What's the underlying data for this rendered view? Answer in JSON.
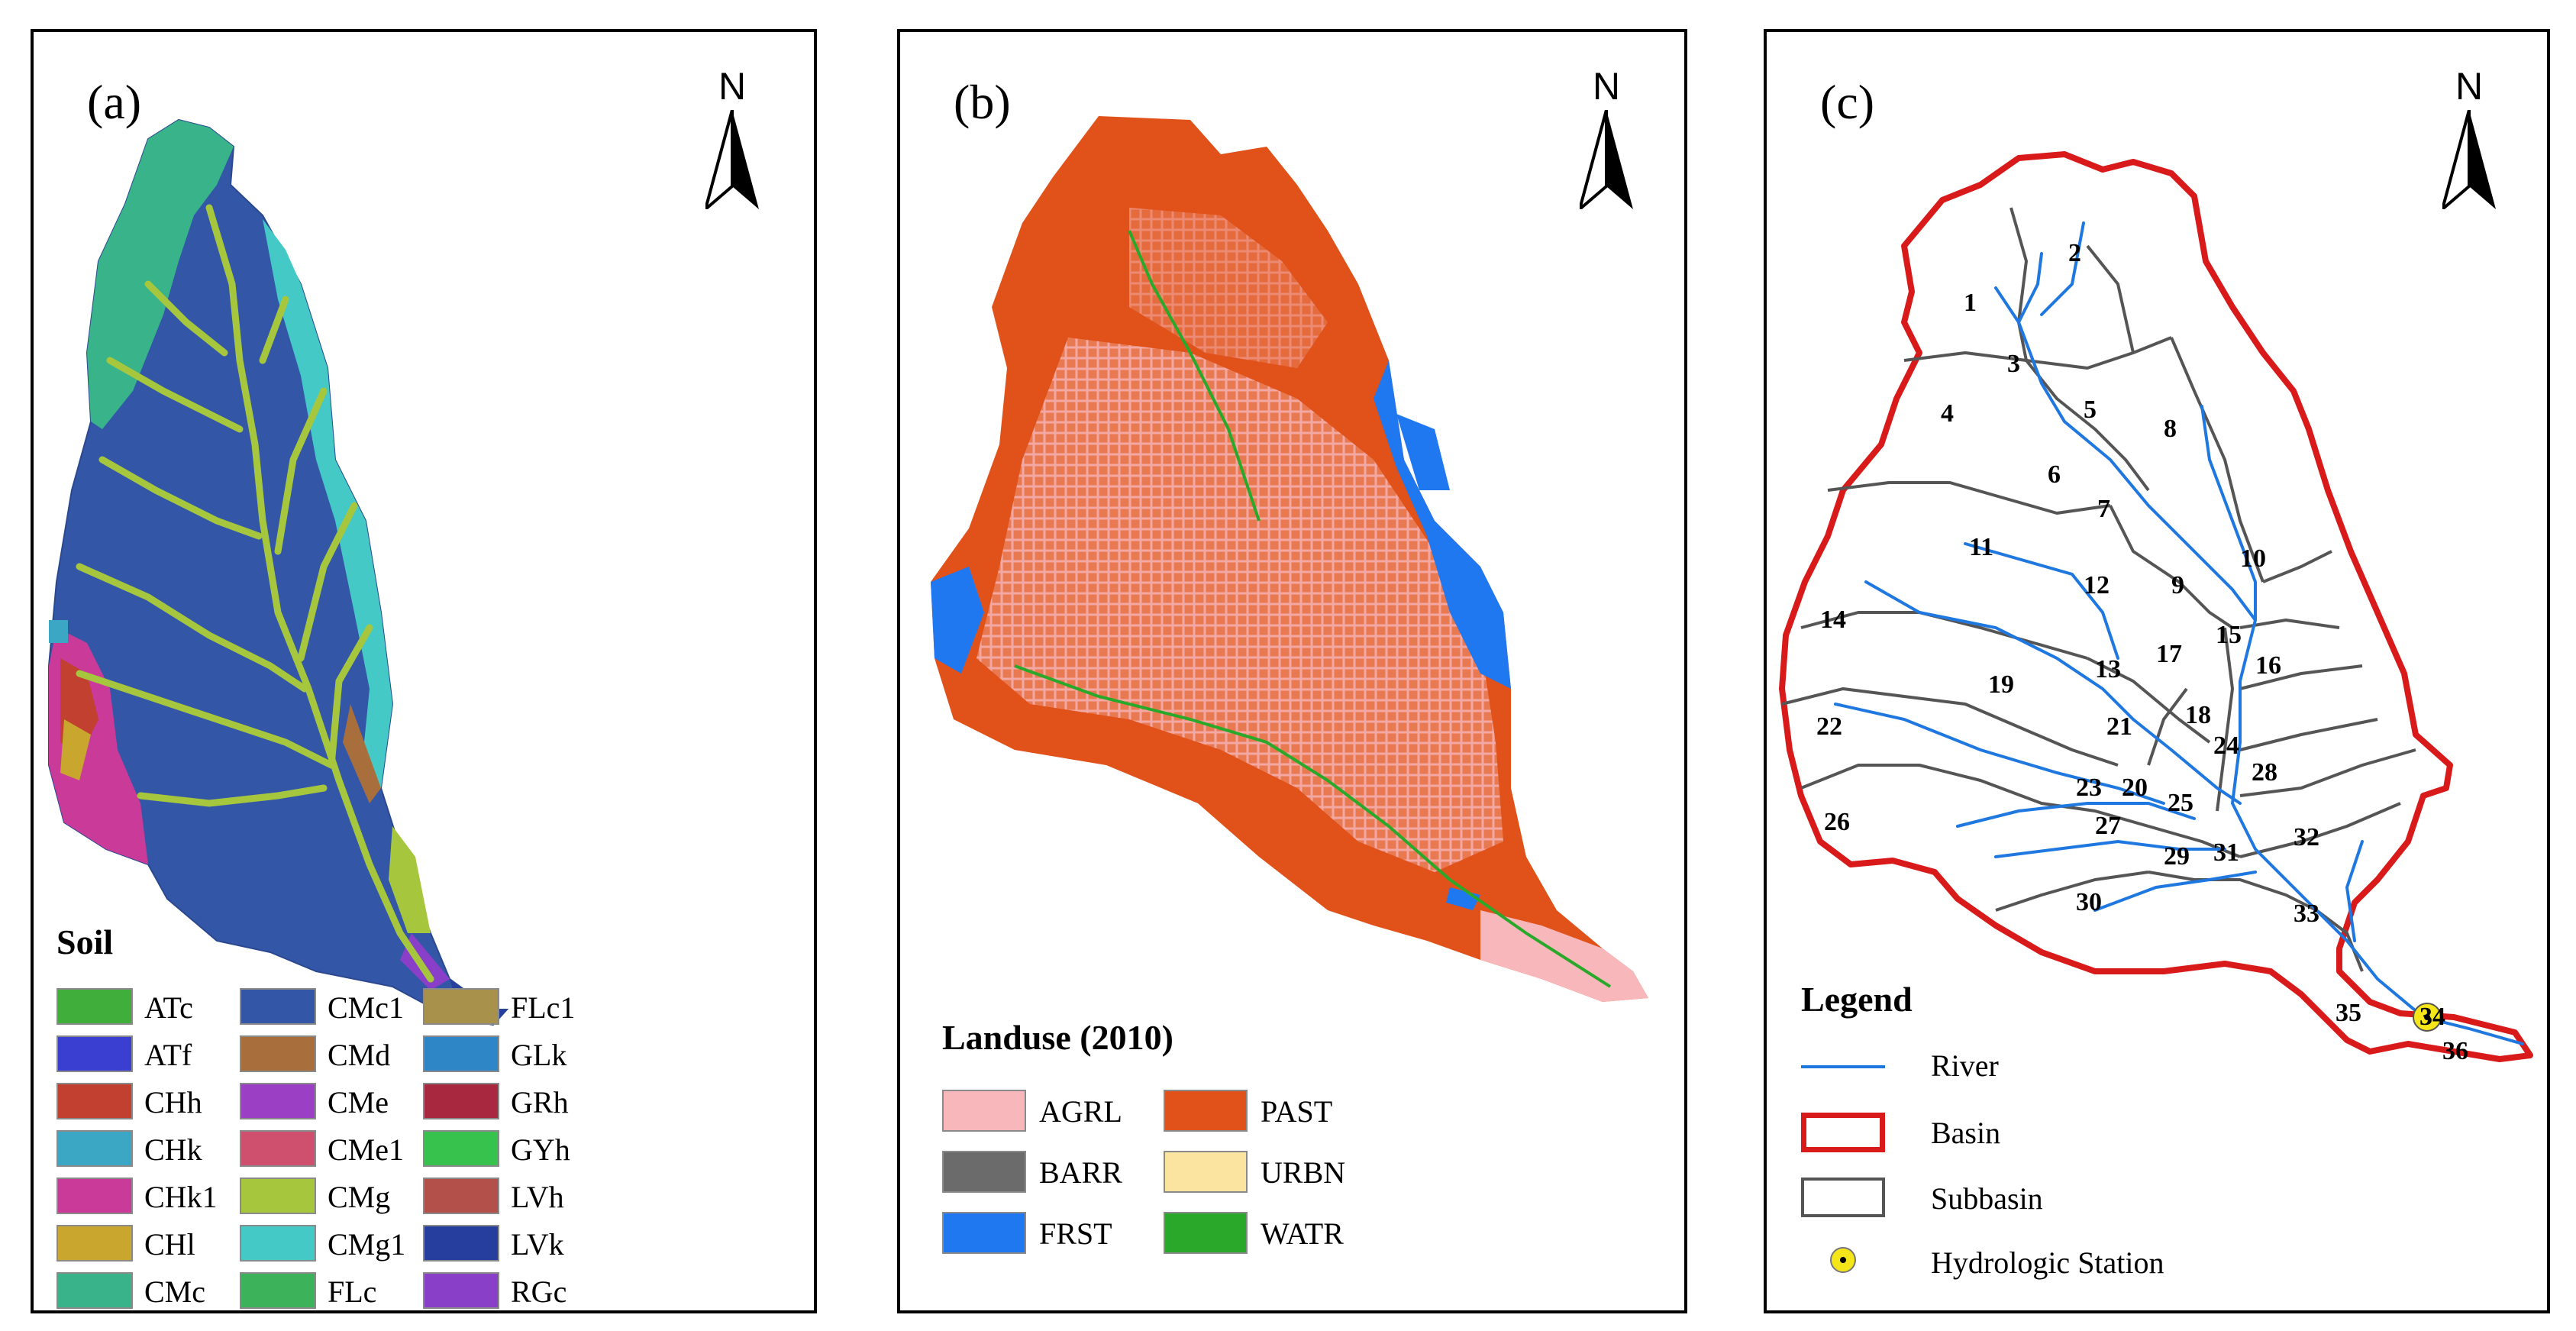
{
  "north_label": "N",
  "panel_a": {
    "label": "(a)",
    "legend_title": "Soil",
    "legend": [
      {
        "code": "ATc",
        "color": "#3fae3a"
      },
      {
        "code": "ATf",
        "color": "#3b3fd1"
      },
      {
        "code": "CHh",
        "color": "#c1402f"
      },
      {
        "code": "CHk",
        "color": "#3ba7c4"
      },
      {
        "code": "CHk1",
        "color": "#c93a99"
      },
      {
        "code": "CHl",
        "color": "#c9a62e"
      },
      {
        "code": "CMc",
        "color": "#38b38a"
      },
      {
        "code": "CMc1",
        "color": "#3357a6"
      },
      {
        "code": "CMd",
        "color": "#a86f3d"
      },
      {
        "code": "CMe",
        "color": "#9b3fc4"
      },
      {
        "code": "CMe1",
        "color": "#cf4f6e"
      },
      {
        "code": "CMg",
        "color": "#a6c63e"
      },
      {
        "code": "CMg1",
        "color": "#45c9c6"
      },
      {
        "code": "FLc",
        "color": "#3cb35a"
      },
      {
        "code": "FLc1",
        "color": "#a8914a"
      },
      {
        "code": "GLk",
        "color": "#2f86c6"
      },
      {
        "code": "GRh",
        "color": "#a82840"
      },
      {
        "code": "GYh",
        "color": "#36c24c"
      },
      {
        "code": "LVh",
        "color": "#b3504a"
      },
      {
        "code": "LVk",
        "color": "#263f9e"
      },
      {
        "code": "RGc",
        "color": "#8a3fc9"
      }
    ]
  },
  "panel_b": {
    "label": "(b)",
    "legend_title": "Landuse (2010)",
    "legend": [
      {
        "code": "AGRL",
        "color": "#f7b7bb"
      },
      {
        "code": "PAST",
        "color": "#e0521a"
      },
      {
        "code": "BARR",
        "color": "#6b6b6b"
      },
      {
        "code": "URBN",
        "color": "#fbe3a0"
      },
      {
        "code": "FRST",
        "color": "#1f78f0"
      },
      {
        "code": "WATR",
        "color": "#2aa82a"
      }
    ]
  },
  "panel_c": {
    "label": "(c)",
    "legend_title": "Legend",
    "legend": [
      {
        "label": "River",
        "color": "#1f77e0"
      },
      {
        "label": "Basin",
        "color": "#d91a1a"
      },
      {
        "label": "Subbasin",
        "color": "#555555"
      },
      {
        "label": "Hydrologic Station",
        "color": "#f5e61a"
      }
    ],
    "subbasins": [
      "1",
      "2",
      "3",
      "4",
      "5",
      "6",
      "7",
      "8",
      "9",
      "10",
      "11",
      "12",
      "13",
      "14",
      "15",
      "16",
      "17",
      "18",
      "19",
      "20",
      "21",
      "22",
      "23",
      "24",
      "25",
      "26",
      "27",
      "28",
      "29",
      "30",
      "31",
      "32",
      "33",
      "34",
      "35",
      "36"
    ]
  }
}
